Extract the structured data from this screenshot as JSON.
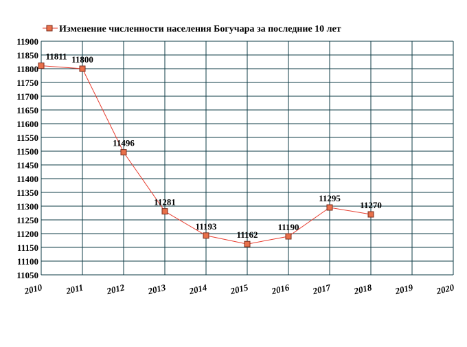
{
  "chart_data": {
    "type": "line",
    "title": "",
    "xlabel": "",
    "ylabel": "",
    "x": [
      "2010",
      "2011",
      "2012",
      "2013",
      "2014",
      "2015",
      "2016",
      "2017",
      "2018",
      "2019",
      "2020"
    ],
    "ylim": [
      11050,
      11900
    ],
    "ytick_step": 50,
    "grid": true,
    "legend_position": "top-left",
    "series": [
      {
        "name": "Изменение численности населения Богучара за последние 10 лет",
        "values": [
          11811,
          11800,
          11496,
          11281,
          11193,
          11162,
          11190,
          11295,
          11270,
          null,
          null
        ],
        "color": "#e83c2e",
        "marker_fill": "#e8704a",
        "marker_stroke": "#7a2a1a"
      }
    ],
    "colors": {
      "grid": "#0d3b45",
      "background": "#ffffff"
    }
  }
}
